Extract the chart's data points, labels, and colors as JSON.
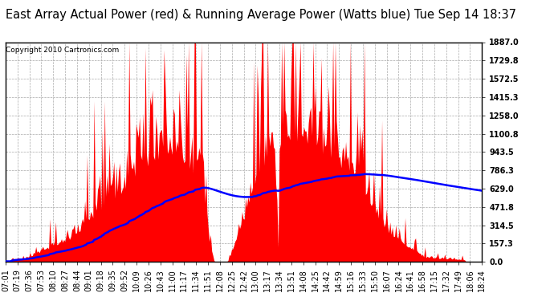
{
  "title": "East Array Actual Power (red) & Running Average Power (Watts blue) Tue Sep 14 18:37",
  "copyright": "Copyright 2010 Cartronics.com",
  "ylabel_right_values": [
    0.0,
    157.3,
    314.5,
    471.8,
    629.0,
    786.3,
    943.5,
    1100.8,
    1258.0,
    1415.3,
    1572.5,
    1729.8,
    1887.0
  ],
  "ymax": 1887.0,
  "ymin": 0.0,
  "background_color": "#ffffff",
  "grid_color": "#aaaaaa",
  "bar_color": "#ff0000",
  "line_color": "#0000ff",
  "title_fontsize": 10.5,
  "copyright_fontsize": 6.5,
  "tick_fontsize": 7,
  "x_labels": [
    "07:01",
    "07:19",
    "07:36",
    "07:53",
    "08:10",
    "08:27",
    "08:44",
    "09:01",
    "09:18",
    "09:35",
    "09:52",
    "10:09",
    "10:26",
    "10:43",
    "11:00",
    "11:17",
    "11:34",
    "11:51",
    "12:08",
    "12:25",
    "12:42",
    "13:00",
    "13:17",
    "13:34",
    "13:51",
    "14:08",
    "14:25",
    "14:42",
    "14:59",
    "15:16",
    "15:33",
    "15:50",
    "16:07",
    "16:24",
    "16:41",
    "16:58",
    "17:15",
    "17:32",
    "17:49",
    "18:06",
    "18:24"
  ],
  "n_points": 410
}
